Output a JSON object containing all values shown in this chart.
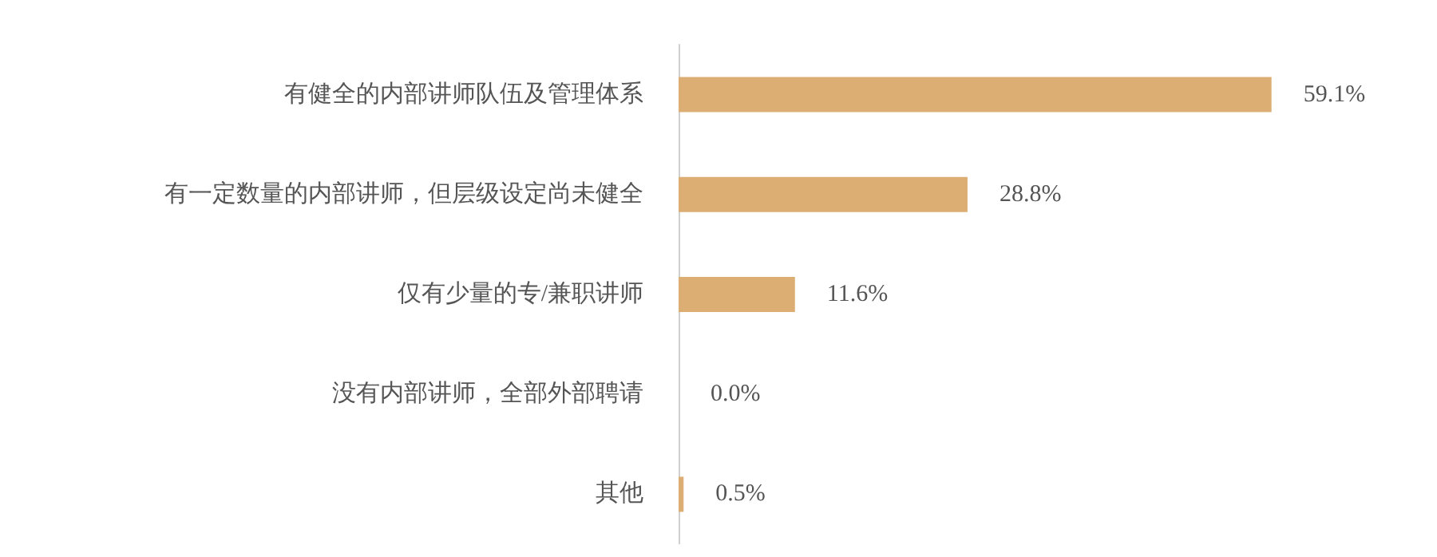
{
  "chart_data": {
    "type": "bar",
    "orientation": "horizontal",
    "categories": [
      "有健全的内部讲师队伍及管理体系",
      "有一定数量的内部讲师，但层级设定尚未健全",
      "仅有少量的专/兼职讲师",
      "没有内部讲师，全部外部聘请",
      "其他"
    ],
    "values": [
      59.1,
      28.8,
      11.6,
      0.0,
      0.5
    ],
    "value_labels": [
      "59.1%",
      "28.8%",
      "11.6%",
      "0.0%",
      "0.5%"
    ],
    "color": "#dcae74"
  }
}
